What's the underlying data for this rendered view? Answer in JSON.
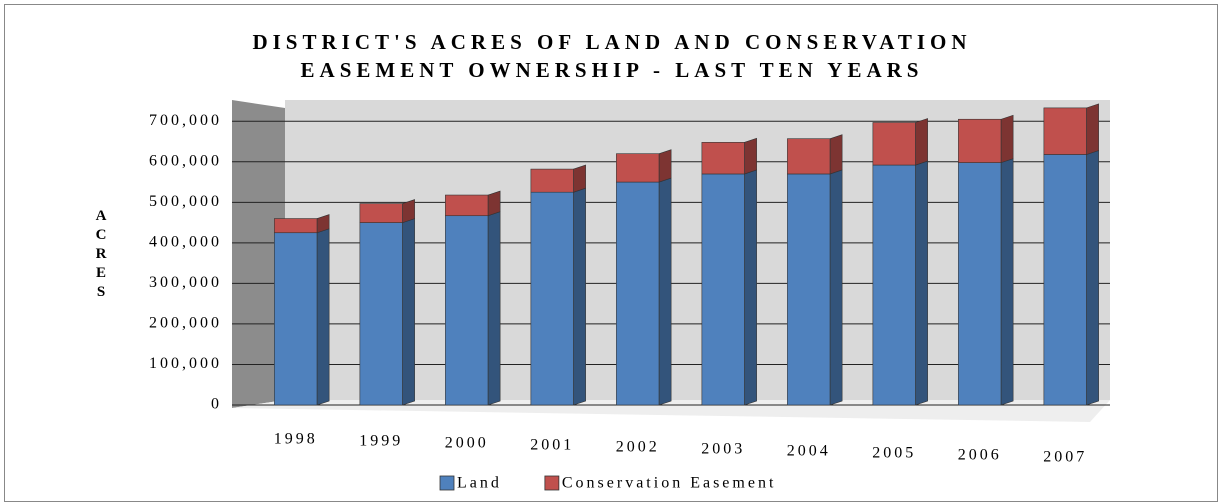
{
  "chart_data": {
    "type": "stacked_bar_3d",
    "title": [
      "DISTRICT'S ACRES OF LAND AND CONSERVATION",
      "EASEMENT OWNERSHIP - LAST TEN YEARS"
    ],
    "y_label": "ACRES",
    "categories": [
      "1998",
      "1999",
      "2000",
      "2001",
      "2002",
      "2003",
      "2004",
      "2005",
      "2006",
      "2007"
    ],
    "series": [
      {
        "name": "Land",
        "color": "#4f81bd",
        "values": [
          425000,
          450000,
          467000,
          525000,
          550000,
          570000,
          570000,
          592000,
          598000,
          618000
        ]
      },
      {
        "name": "Conservation Easement",
        "color": "#c0504d",
        "values": [
          35000,
          47000,
          51000,
          57000,
          70000,
          78000,
          87000,
          105000,
          107000,
          115000
        ]
      }
    ],
    "ylim": [
      0,
      750000
    ],
    "yticks": [
      0,
      {
        "value": 100000,
        "label": "100,000"
      },
      {
        "value": 200000,
        "label": "200,000"
      },
      {
        "value": 300000,
        "label": "300,000"
      },
      {
        "value": 400000,
        "label": "400,000"
      },
      {
        "value": 500000,
        "label": "500,000"
      },
      {
        "value": 600000,
        "label": "600,000"
      },
      {
        "value": 700000,
        "label": "700,000"
      }
    ],
    "grid": true,
    "legend": "bottom"
  }
}
